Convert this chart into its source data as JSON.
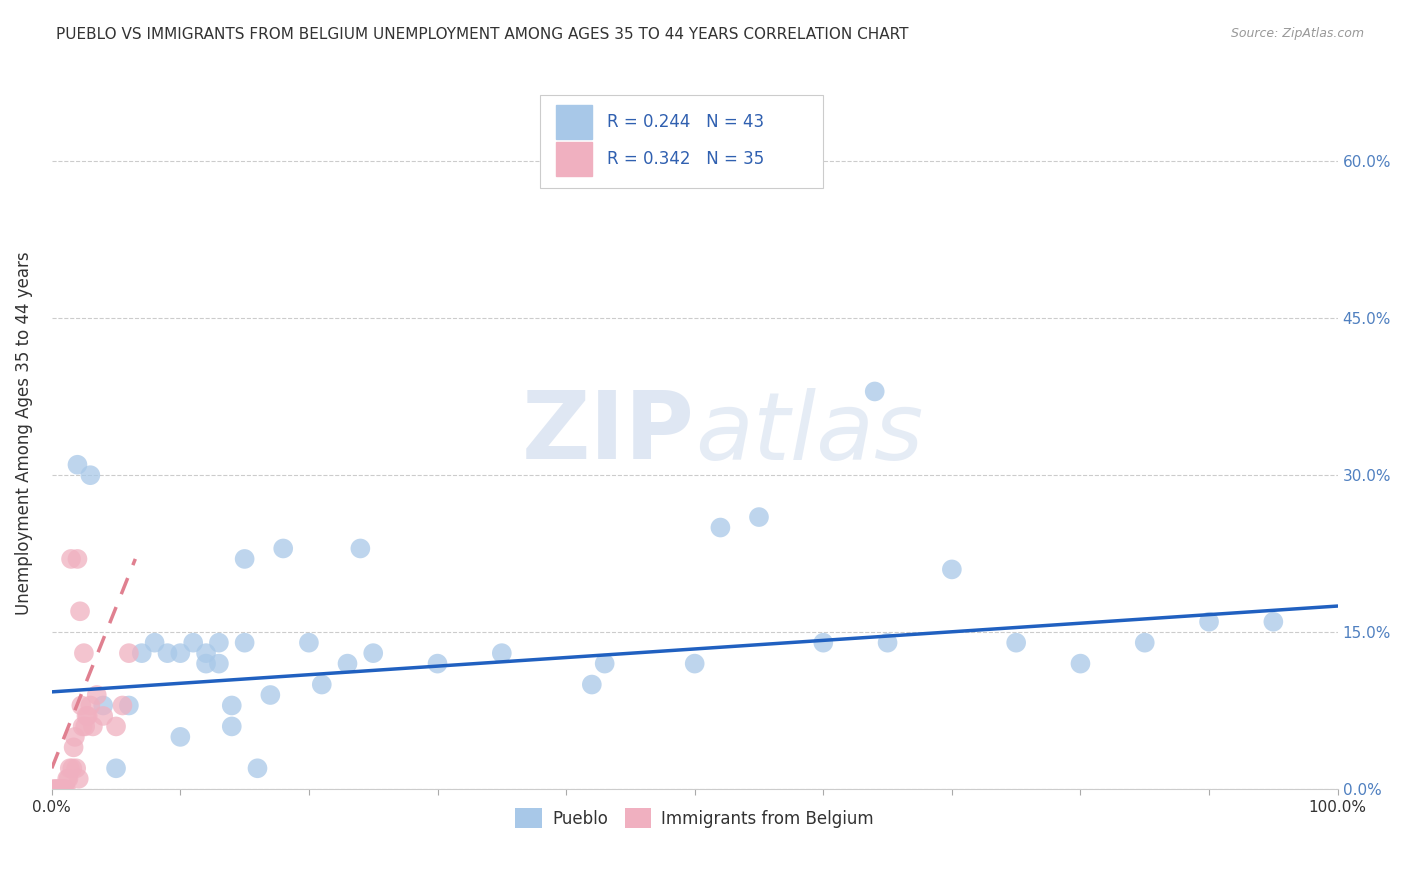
{
  "title": "PUEBLO VS IMMIGRANTS FROM BELGIUM UNEMPLOYMENT AMONG AGES 35 TO 44 YEARS CORRELATION CHART",
  "source": "Source: ZipAtlas.com",
  "ylabel": "Unemployment Among Ages 35 to 44 years",
  "watermark_zip": "ZIP",
  "watermark_atlas": "atlas",
  "legend_r1": "R = 0.244",
  "legend_n1": "N = 43",
  "legend_r2": "R = 0.342",
  "legend_n2": "N = 35",
  "pueblo_color": "#a8c8e8",
  "belgium_color": "#f0b0c0",
  "trendline_pueblo_color": "#2060c0",
  "trendline_belgium_color": "#e08090",
  "xlim": [
    0,
    1.0
  ],
  "ylim": [
    0,
    0.68
  ],
  "xticks": [
    0.0,
    0.1,
    0.2,
    0.3,
    0.4,
    0.5,
    0.6,
    0.7,
    0.8,
    0.9,
    1.0
  ],
  "xticklabels_show": [
    "0.0%",
    "",
    "",
    "",
    "",
    "",
    "",
    "",
    "",
    "",
    "100.0%"
  ],
  "yticks": [
    0.0,
    0.15,
    0.3,
    0.45,
    0.6
  ],
  "yticklabels": [
    "0.0%",
    "15.0%",
    "30.0%",
    "45.0%",
    "60.0%"
  ],
  "pueblo_x": [
    0.02,
    0.03,
    0.04,
    0.05,
    0.06,
    0.07,
    0.08,
    0.09,
    0.1,
    0.1,
    0.11,
    0.12,
    0.12,
    0.13,
    0.13,
    0.14,
    0.14,
    0.15,
    0.15,
    0.16,
    0.17,
    0.18,
    0.2,
    0.21,
    0.23,
    0.24,
    0.25,
    0.3,
    0.35,
    0.42,
    0.43,
    0.5,
    0.52,
    0.55,
    0.6,
    0.64,
    0.65,
    0.7,
    0.75,
    0.8,
    0.85,
    0.9,
    0.95
  ],
  "pueblo_y": [
    0.31,
    0.3,
    0.08,
    0.02,
    0.08,
    0.13,
    0.14,
    0.13,
    0.13,
    0.05,
    0.14,
    0.13,
    0.12,
    0.14,
    0.12,
    0.06,
    0.08,
    0.14,
    0.22,
    0.02,
    0.09,
    0.23,
    0.14,
    0.1,
    0.12,
    0.23,
    0.13,
    0.12,
    0.13,
    0.1,
    0.12,
    0.12,
    0.25,
    0.26,
    0.14,
    0.38,
    0.14,
    0.21,
    0.14,
    0.12,
    0.14,
    0.16,
    0.16
  ],
  "belgium_x": [
    0.001,
    0.002,
    0.003,
    0.004,
    0.005,
    0.006,
    0.007,
    0.008,
    0.009,
    0.01,
    0.011,
    0.012,
    0.013,
    0.014,
    0.015,
    0.016,
    0.017,
    0.018,
    0.019,
    0.02,
    0.021,
    0.022,
    0.023,
    0.024,
    0.025,
    0.026,
    0.027,
    0.028,
    0.03,
    0.032,
    0.035,
    0.04,
    0.05,
    0.055,
    0.06
  ],
  "belgium_y": [
    0.0,
    0.0,
    0.0,
    0.0,
    0.0,
    0.0,
    0.0,
    0.0,
    0.0,
    0.0,
    0.0,
    0.01,
    0.01,
    0.02,
    0.22,
    0.02,
    0.04,
    0.05,
    0.02,
    0.22,
    0.01,
    0.17,
    0.08,
    0.06,
    0.13,
    0.06,
    0.07,
    0.07,
    0.08,
    0.06,
    0.09,
    0.07,
    0.06,
    0.08,
    0.13
  ],
  "pueblo_trendline_x": [
    0.0,
    1.0
  ],
  "pueblo_trendline_y": [
    0.093,
    0.175
  ],
  "belgium_trendline_x": [
    0.0,
    0.065
  ],
  "belgium_trendline_y": [
    0.02,
    0.22
  ]
}
